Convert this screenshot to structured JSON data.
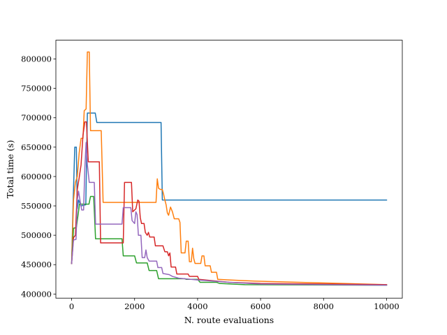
{
  "chart_data": {
    "type": "line",
    "title": "",
    "xlabel": "N. route evaluations",
    "ylabel": "Total time (s)",
    "xlim": [
      -500,
      10500
    ],
    "ylim": [
      393000,
      832000
    ],
    "xticks": [
      0,
      2000,
      4000,
      6000,
      8000,
      10000
    ],
    "yticks": [
      400000,
      450000,
      500000,
      550000,
      600000,
      650000,
      700000,
      750000,
      800000
    ],
    "grid": false,
    "legend": "none",
    "series": [
      {
        "color": "#1f77b4",
        "points": [
          [
            0,
            452000
          ],
          [
            50,
            560000
          ],
          [
            100,
            650000
          ],
          [
            150,
            650000
          ],
          [
            180,
            545000
          ],
          [
            220,
            560000
          ],
          [
            300,
            550000
          ],
          [
            450,
            552000
          ],
          [
            500,
            708000
          ],
          [
            750,
            708000
          ],
          [
            800,
            692000
          ],
          [
            2840,
            692000
          ],
          [
            2880,
            560000
          ],
          [
            10000,
            560000
          ]
        ]
      },
      {
        "color": "#ff7f0e",
        "points": [
          [
            0,
            452000
          ],
          [
            60,
            560000
          ],
          [
            120,
            590000
          ],
          [
            180,
            600000
          ],
          [
            240,
            640000
          ],
          [
            300,
            665000
          ],
          [
            360,
            665000
          ],
          [
            400,
            712000
          ],
          [
            460,
            715000
          ],
          [
            500,
            812000
          ],
          [
            560,
            812000
          ],
          [
            600,
            678000
          ],
          [
            940,
            678000
          ],
          [
            1000,
            556000
          ],
          [
            2680,
            556000
          ],
          [
            2720,
            596000
          ],
          [
            2760,
            580000
          ],
          [
            2820,
            578000
          ],
          [
            2880,
            578000
          ],
          [
            2920,
            570000
          ],
          [
            2960,
            560000
          ],
          [
            3000,
            552000
          ],
          [
            3040,
            538000
          ],
          [
            3080,
            534000
          ],
          [
            3140,
            548000
          ],
          [
            3200,
            540000
          ],
          [
            3260,
            528000
          ],
          [
            3400,
            528000
          ],
          [
            3440,
            522000
          ],
          [
            3480,
            470000
          ],
          [
            3600,
            470000
          ],
          [
            3640,
            490000
          ],
          [
            3700,
            490000
          ],
          [
            3740,
            455000
          ],
          [
            3800,
            455000
          ],
          [
            3840,
            478000
          ],
          [
            3880,
            460000
          ],
          [
            3920,
            452000
          ],
          [
            4100,
            452000
          ],
          [
            4140,
            465000
          ],
          [
            4200,
            465000
          ],
          [
            4240,
            448000
          ],
          [
            4400,
            448000
          ],
          [
            4440,
            437000
          ],
          [
            4600,
            437000
          ],
          [
            4640,
            425000
          ],
          [
            5000,
            424000
          ],
          [
            5800,
            422000
          ],
          [
            10000,
            416000
          ]
        ]
      },
      {
        "color": "#2ca02c",
        "points": [
          [
            0,
            452000
          ],
          [
            60,
            512000
          ],
          [
            150,
            513000
          ],
          [
            250,
            553000
          ],
          [
            550,
            553000
          ],
          [
            600,
            566000
          ],
          [
            700,
            566000
          ],
          [
            760,
            494000
          ],
          [
            1600,
            494000
          ],
          [
            1640,
            465000
          ],
          [
            2000,
            465000
          ],
          [
            2060,
            453000
          ],
          [
            2400,
            453000
          ],
          [
            2460,
            440000
          ],
          [
            2700,
            440000
          ],
          [
            2760,
            426000
          ],
          [
            3600,
            426000
          ],
          [
            3640,
            425000
          ],
          [
            4000,
            425000
          ],
          [
            4080,
            420000
          ],
          [
            4600,
            420000
          ],
          [
            4700,
            418000
          ],
          [
            5500,
            416000
          ],
          [
            10000,
            415000
          ]
        ]
      },
      {
        "color": "#d62728",
        "points": [
          [
            0,
            452000
          ],
          [
            60,
            496000
          ],
          [
            120,
            500000
          ],
          [
            180,
            578000
          ],
          [
            240,
            598000
          ],
          [
            300,
            620000
          ],
          [
            360,
            670000
          ],
          [
            420,
            693000
          ],
          [
            470,
            693000
          ],
          [
            530,
            625000
          ],
          [
            880,
            625000
          ],
          [
            920,
            487000
          ],
          [
            1640,
            487000
          ],
          [
            1680,
            590000
          ],
          [
            1900,
            590000
          ],
          [
            1940,
            540000
          ],
          [
            2040,
            545000
          ],
          [
            2100,
            560000
          ],
          [
            2140,
            558000
          ],
          [
            2180,
            530000
          ],
          [
            2220,
            520000
          ],
          [
            2300,
            520000
          ],
          [
            2340,
            505000
          ],
          [
            2400,
            500000
          ],
          [
            2440,
            505000
          ],
          [
            2480,
            497000
          ],
          [
            2620,
            497000
          ],
          [
            2660,
            482000
          ],
          [
            2900,
            482000
          ],
          [
            2960,
            472000
          ],
          [
            3040,
            472000
          ],
          [
            3080,
            465000
          ],
          [
            3120,
            470000
          ],
          [
            3160,
            446000
          ],
          [
            3300,
            446000
          ],
          [
            3340,
            434000
          ],
          [
            3700,
            434000
          ],
          [
            3740,
            430000
          ],
          [
            4000,
            430000
          ],
          [
            4040,
            425000
          ],
          [
            5000,
            420000
          ],
          [
            6000,
            418000
          ],
          [
            10000,
            416000
          ]
        ]
      },
      {
        "color": "#9467bd",
        "points": [
          [
            0,
            452000
          ],
          [
            60,
            492000
          ],
          [
            140,
            493000
          ],
          [
            180,
            560000
          ],
          [
            220,
            575000
          ],
          [
            280,
            555000
          ],
          [
            320,
            543000
          ],
          [
            380,
            543000
          ],
          [
            420,
            615000
          ],
          [
            460,
            658000
          ],
          [
            500,
            620000
          ],
          [
            560,
            590000
          ],
          [
            720,
            590000
          ],
          [
            760,
            519000
          ],
          [
            1600,
            519000
          ],
          [
            1640,
            547000
          ],
          [
            1880,
            547000
          ],
          [
            1920,
            525000
          ],
          [
            2000,
            520000
          ],
          [
            2040,
            540000
          ],
          [
            2080,
            535000
          ],
          [
            2120,
            500000
          ],
          [
            2200,
            500000
          ],
          [
            2240,
            462000
          ],
          [
            2320,
            462000
          ],
          [
            2360,
            475000
          ],
          [
            2400,
            462000
          ],
          [
            2460,
            456000
          ],
          [
            2700,
            456000
          ],
          [
            2740,
            445000
          ],
          [
            2860,
            445000
          ],
          [
            2900,
            435000
          ],
          [
            3100,
            433000
          ],
          [
            3200,
            430000
          ],
          [
            3400,
            427000
          ],
          [
            4000,
            424000
          ],
          [
            5000,
            420000
          ],
          [
            6000,
            417000
          ],
          [
            10000,
            415000
          ]
        ]
      }
    ]
  }
}
